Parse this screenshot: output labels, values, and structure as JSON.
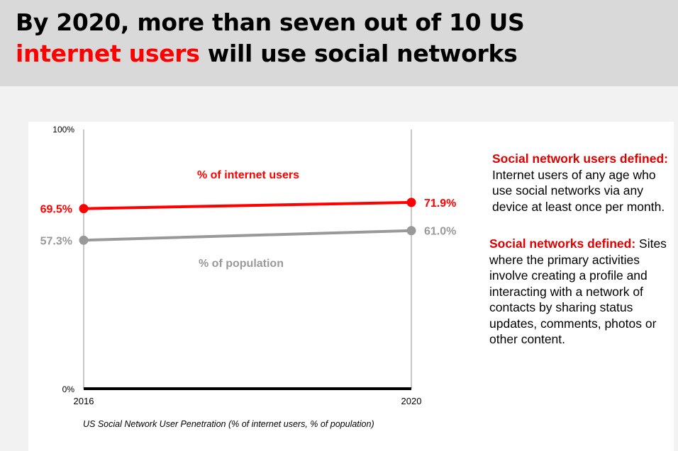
{
  "title": {
    "line1": "By 2020, more than seven out of 10 US",
    "highlight": "internet users",
    "line2_rest": " will use social networks"
  },
  "colors": {
    "internet_users": "#ff0000",
    "population": "#999999",
    "header_bg": "#d9d9d9",
    "definition_heading": "#e00000"
  },
  "chart_data": {
    "type": "line",
    "x": [
      "2016",
      "2020"
    ],
    "ylim": [
      0,
      100
    ],
    "y_ticks": [
      "0%",
      "100%"
    ],
    "caption": "US Social Network User Penetration (% of internet users, % of population)",
    "series": [
      {
        "name": "% of internet users",
        "values": [
          69.5,
          71.9
        ],
        "labels": [
          "69.5%",
          "71.9%"
        ],
        "color": "#ff0000"
      },
      {
        "name": "% of population",
        "values": [
          57.3,
          61.0
        ],
        "labels": [
          "57.3%",
          "61.0%"
        ],
        "color": "#999999"
      }
    ]
  },
  "definitions": [
    {
      "heading": "Social network users defined:",
      "text": " Internet users of any age who use social networks via any device at least once per month."
    },
    {
      "heading": "Social networks defined:",
      "text": " Sites where the primary activities involve creating a profile and interacting with a network of contacts by sharing status updates, comments, photos or other content."
    }
  ]
}
